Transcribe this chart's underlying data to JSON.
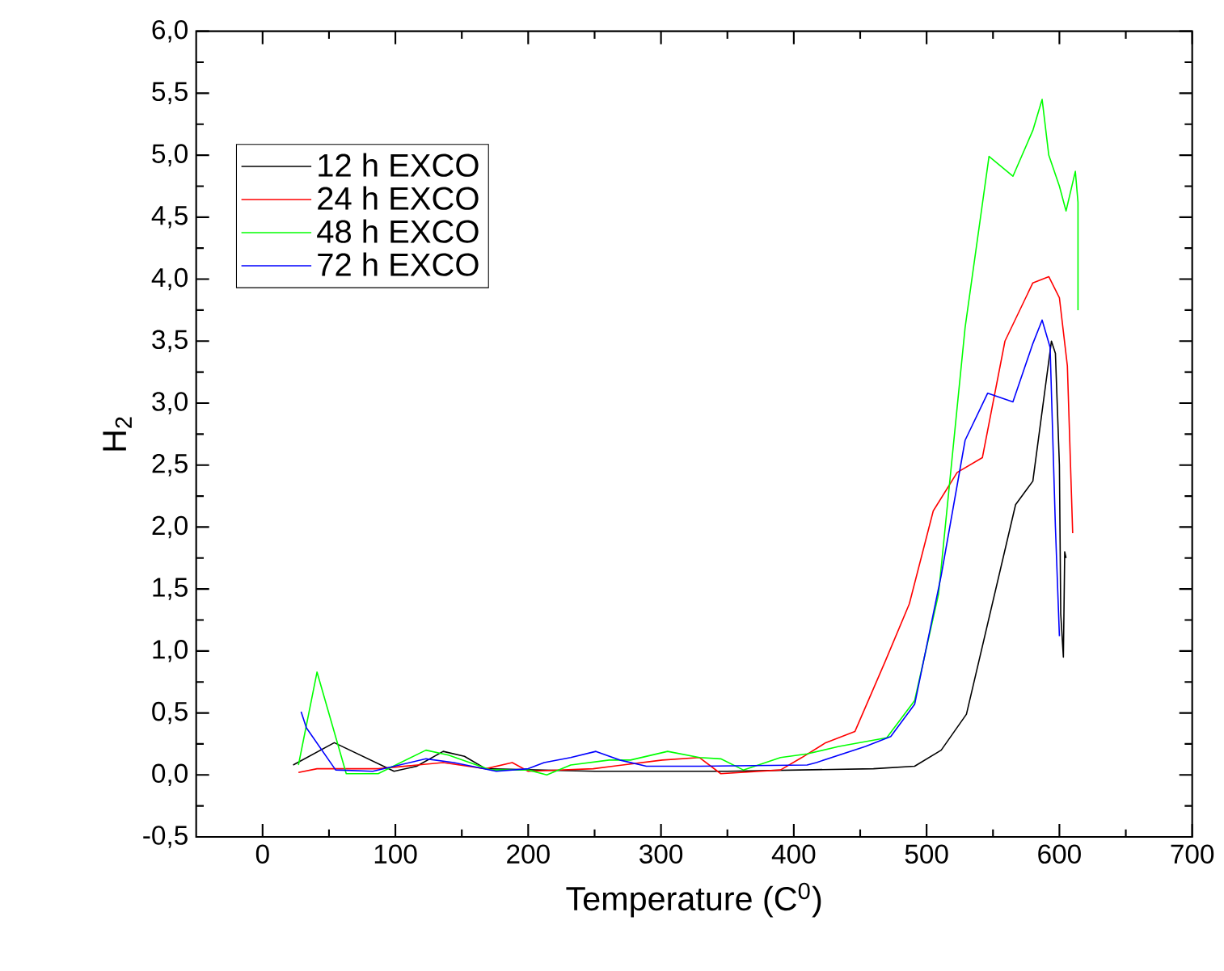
{
  "chart_data": {
    "type": "line",
    "xlabel": "Temperature (C$^{0}$)",
    "ylabel": "H$_{2}$",
    "xlim": [
      -50,
      700
    ],
    "xticks": [
      0,
      100,
      200,
      300,
      400,
      500,
      600,
      700
    ],
    "ylim": [
      -0.5,
      6.0
    ],
    "yticks": [
      {
        "value": -0.5,
        "label": "-0,5"
      },
      {
        "value": 0,
        "label": "0,0"
      },
      {
        "value": 0.5,
        "label": "0,5"
      },
      {
        "value": 1.0,
        "label": "1,0"
      },
      {
        "value": 1.5,
        "label": "1,5"
      },
      {
        "value": 2.0,
        "label": "2,0"
      },
      {
        "value": 2.5,
        "label": "2,5"
      },
      {
        "value": 3.0,
        "label": "3,0"
      },
      {
        "value": 3.5,
        "label": "3,5"
      },
      {
        "value": 4.0,
        "label": "4,0"
      },
      {
        "value": 4.5,
        "label": "4,5"
      },
      {
        "value": 5.0,
        "label": "5,0"
      },
      {
        "value": 5.5,
        "label": "5,5"
      },
      {
        "value": 6.0,
        "label": "6,0"
      }
    ],
    "legend": "top left",
    "grid": false,
    "marker": "none",
    "line_style": "solid",
    "series": [
      {
        "name": "12 h EXCO",
        "color": "#000000",
        "x": [
          23,
          54,
          99,
          116,
          136,
          152,
          168,
          250,
          350,
          460,
          491,
          511,
          530,
          567,
          580,
          594,
          597,
          600,
          601,
          603,
          604,
          605
        ],
        "values": [
          0.08,
          0.26,
          0.03,
          0.07,
          0.19,
          0.15,
          0.05,
          0.03,
          0.03,
          0.05,
          0.07,
          0.2,
          0.49,
          2.18,
          2.37,
          3.5,
          3.4,
          2.5,
          1.3,
          0.95,
          1.8,
          1.75
        ]
      },
      {
        "name": "24 h EXCO",
        "color": "#ff0000",
        "x": [
          27,
          41,
          87,
          136,
          168,
          188,
          200,
          249,
          301,
          329,
          345,
          390,
          406,
          424,
          446,
          469,
          487,
          505,
          523,
          542,
          559,
          580,
          592,
          600,
          606,
          610
        ],
        "values": [
          0.02,
          0.05,
          0.05,
          0.1,
          0.05,
          0.1,
          0.03,
          0.05,
          0.12,
          0.14,
          0.01,
          0.04,
          0.14,
          0.26,
          0.35,
          0.92,
          1.38,
          2.13,
          2.44,
          2.56,
          3.5,
          3.97,
          4.02,
          3.85,
          3.3,
          1.95
        ]
      },
      {
        "name": "48 h EXCO",
        "color": "#00ff00",
        "x": [
          27,
          41,
          63,
          87,
          123,
          140,
          172,
          200,
          214,
          232,
          261,
          277,
          305,
          329,
          345,
          362,
          390,
          410,
          434,
          470,
          491,
          509,
          529,
          547,
          565,
          580,
          587,
          592,
          600,
          605,
          612,
          614,
          614
        ],
        "values": [
          0.08,
          0.83,
          0.01,
          0.01,
          0.2,
          0.16,
          0.04,
          0.04,
          0.0,
          0.08,
          0.12,
          0.12,
          0.19,
          0.14,
          0.13,
          0.04,
          0.14,
          0.17,
          0.23,
          0.3,
          0.6,
          1.46,
          3.61,
          4.99,
          4.83,
          5.2,
          5.45,
          5.0,
          4.75,
          4.55,
          4.87,
          4.62,
          3.75
        ]
      },
      {
        "name": "72 h EXCO",
        "color": "#0000ff",
        "x": [
          29,
          33,
          55,
          83,
          123,
          144,
          176,
          200,
          212,
          232,
          251,
          269,
          289,
          329,
          410,
          417,
          454,
          473,
          491,
          511,
          529,
          546,
          565,
          580,
          587,
          593,
          597,
          600
        ],
        "values": [
          0.51,
          0.38,
          0.04,
          0.03,
          0.13,
          0.1,
          0.03,
          0.05,
          0.1,
          0.14,
          0.19,
          0.12,
          0.07,
          0.07,
          0.08,
          0.1,
          0.23,
          0.31,
          0.57,
          1.61,
          2.7,
          3.08,
          3.01,
          3.48,
          3.67,
          3.45,
          2.0,
          1.12
        ]
      }
    ]
  }
}
